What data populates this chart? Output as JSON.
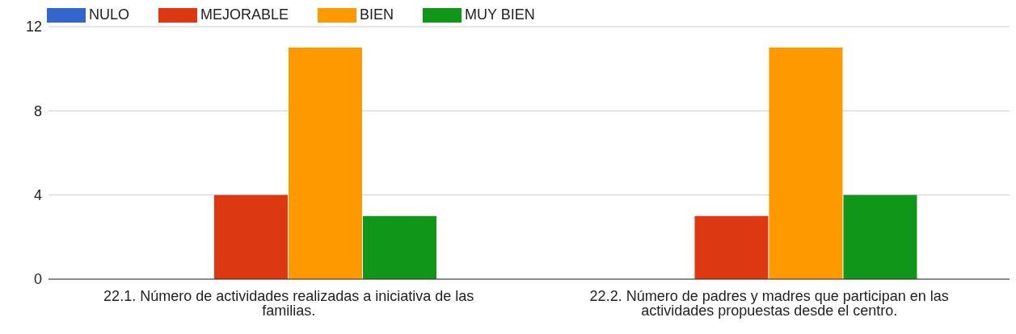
{
  "chart_data": {
    "type": "bar",
    "categories": [
      "22.1. Número de actividades realizadas a iniciativa de las familias.",
      "22.2. Número de padres y madres que participan en las actividades propuestas desde el centro."
    ],
    "series": [
      {
        "name": "NULO",
        "color": "#3366cc",
        "values": [
          0,
          0
        ]
      },
      {
        "name": "MEJORABLE",
        "color": "#dc3912",
        "values": [
          4,
          3
        ]
      },
      {
        "name": "BIEN",
        "color": "#ff9900",
        "values": [
          11,
          11
        ]
      },
      {
        "name": "MUY BIEN",
        "color": "#109618",
        "values": [
          3,
          4
        ]
      }
    ],
    "ylim": [
      0,
      12
    ],
    "yticks": [
      0,
      4,
      8,
      12
    ],
    "grid": "y",
    "legend": "top left"
  }
}
